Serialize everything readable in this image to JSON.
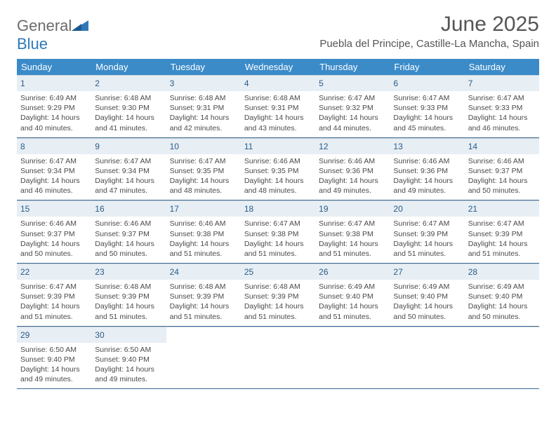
{
  "logo": {
    "word1": "General",
    "word2": "Blue"
  },
  "title": "June 2025",
  "location": "Puebla del Principe, Castille-La Mancha, Spain",
  "colors": {
    "header_bg": "#3b8bc9",
    "header_text": "#ffffff",
    "daynum_bg": "#e7eef4",
    "daynum_text": "#2a5d8a",
    "week_border": "#3b6a94",
    "body_text": "#4a4a4a",
    "logo_gray": "#6b6b6b",
    "logo_blue": "#2f78b8"
  },
  "day_names": [
    "Sunday",
    "Monday",
    "Tuesday",
    "Wednesday",
    "Thursday",
    "Friday",
    "Saturday"
  ],
  "weeks": [
    [
      {
        "n": "1",
        "sr": "Sunrise: 6:49 AM",
        "ss": "Sunset: 9:29 PM",
        "dl1": "Daylight: 14 hours",
        "dl2": "and 40 minutes."
      },
      {
        "n": "2",
        "sr": "Sunrise: 6:48 AM",
        "ss": "Sunset: 9:30 PM",
        "dl1": "Daylight: 14 hours",
        "dl2": "and 41 minutes."
      },
      {
        "n": "3",
        "sr": "Sunrise: 6:48 AM",
        "ss": "Sunset: 9:31 PM",
        "dl1": "Daylight: 14 hours",
        "dl2": "and 42 minutes."
      },
      {
        "n": "4",
        "sr": "Sunrise: 6:48 AM",
        "ss": "Sunset: 9:31 PM",
        "dl1": "Daylight: 14 hours",
        "dl2": "and 43 minutes."
      },
      {
        "n": "5",
        "sr": "Sunrise: 6:47 AM",
        "ss": "Sunset: 9:32 PM",
        "dl1": "Daylight: 14 hours",
        "dl2": "and 44 minutes."
      },
      {
        "n": "6",
        "sr": "Sunrise: 6:47 AM",
        "ss": "Sunset: 9:33 PM",
        "dl1": "Daylight: 14 hours",
        "dl2": "and 45 minutes."
      },
      {
        "n": "7",
        "sr": "Sunrise: 6:47 AM",
        "ss": "Sunset: 9:33 PM",
        "dl1": "Daylight: 14 hours",
        "dl2": "and 46 minutes."
      }
    ],
    [
      {
        "n": "8",
        "sr": "Sunrise: 6:47 AM",
        "ss": "Sunset: 9:34 PM",
        "dl1": "Daylight: 14 hours",
        "dl2": "and 46 minutes."
      },
      {
        "n": "9",
        "sr": "Sunrise: 6:47 AM",
        "ss": "Sunset: 9:34 PM",
        "dl1": "Daylight: 14 hours",
        "dl2": "and 47 minutes."
      },
      {
        "n": "10",
        "sr": "Sunrise: 6:47 AM",
        "ss": "Sunset: 9:35 PM",
        "dl1": "Daylight: 14 hours",
        "dl2": "and 48 minutes."
      },
      {
        "n": "11",
        "sr": "Sunrise: 6:46 AM",
        "ss": "Sunset: 9:35 PM",
        "dl1": "Daylight: 14 hours",
        "dl2": "and 48 minutes."
      },
      {
        "n": "12",
        "sr": "Sunrise: 6:46 AM",
        "ss": "Sunset: 9:36 PM",
        "dl1": "Daylight: 14 hours",
        "dl2": "and 49 minutes."
      },
      {
        "n": "13",
        "sr": "Sunrise: 6:46 AM",
        "ss": "Sunset: 9:36 PM",
        "dl1": "Daylight: 14 hours",
        "dl2": "and 49 minutes."
      },
      {
        "n": "14",
        "sr": "Sunrise: 6:46 AM",
        "ss": "Sunset: 9:37 PM",
        "dl1": "Daylight: 14 hours",
        "dl2": "and 50 minutes."
      }
    ],
    [
      {
        "n": "15",
        "sr": "Sunrise: 6:46 AM",
        "ss": "Sunset: 9:37 PM",
        "dl1": "Daylight: 14 hours",
        "dl2": "and 50 minutes."
      },
      {
        "n": "16",
        "sr": "Sunrise: 6:46 AM",
        "ss": "Sunset: 9:37 PM",
        "dl1": "Daylight: 14 hours",
        "dl2": "and 50 minutes."
      },
      {
        "n": "17",
        "sr": "Sunrise: 6:46 AM",
        "ss": "Sunset: 9:38 PM",
        "dl1": "Daylight: 14 hours",
        "dl2": "and 51 minutes."
      },
      {
        "n": "18",
        "sr": "Sunrise: 6:47 AM",
        "ss": "Sunset: 9:38 PM",
        "dl1": "Daylight: 14 hours",
        "dl2": "and 51 minutes."
      },
      {
        "n": "19",
        "sr": "Sunrise: 6:47 AM",
        "ss": "Sunset: 9:38 PM",
        "dl1": "Daylight: 14 hours",
        "dl2": "and 51 minutes."
      },
      {
        "n": "20",
        "sr": "Sunrise: 6:47 AM",
        "ss": "Sunset: 9:39 PM",
        "dl1": "Daylight: 14 hours",
        "dl2": "and 51 minutes."
      },
      {
        "n": "21",
        "sr": "Sunrise: 6:47 AM",
        "ss": "Sunset: 9:39 PM",
        "dl1": "Daylight: 14 hours",
        "dl2": "and 51 minutes."
      }
    ],
    [
      {
        "n": "22",
        "sr": "Sunrise: 6:47 AM",
        "ss": "Sunset: 9:39 PM",
        "dl1": "Daylight: 14 hours",
        "dl2": "and 51 minutes."
      },
      {
        "n": "23",
        "sr": "Sunrise: 6:48 AM",
        "ss": "Sunset: 9:39 PM",
        "dl1": "Daylight: 14 hours",
        "dl2": "and 51 minutes."
      },
      {
        "n": "24",
        "sr": "Sunrise: 6:48 AM",
        "ss": "Sunset: 9:39 PM",
        "dl1": "Daylight: 14 hours",
        "dl2": "and 51 minutes."
      },
      {
        "n": "25",
        "sr": "Sunrise: 6:48 AM",
        "ss": "Sunset: 9:39 PM",
        "dl1": "Daylight: 14 hours",
        "dl2": "and 51 minutes."
      },
      {
        "n": "26",
        "sr": "Sunrise: 6:49 AM",
        "ss": "Sunset: 9:40 PM",
        "dl1": "Daylight: 14 hours",
        "dl2": "and 51 minutes."
      },
      {
        "n": "27",
        "sr": "Sunrise: 6:49 AM",
        "ss": "Sunset: 9:40 PM",
        "dl1": "Daylight: 14 hours",
        "dl2": "and 50 minutes."
      },
      {
        "n": "28",
        "sr": "Sunrise: 6:49 AM",
        "ss": "Sunset: 9:40 PM",
        "dl1": "Daylight: 14 hours",
        "dl2": "and 50 minutes."
      }
    ],
    [
      {
        "n": "29",
        "sr": "Sunrise: 6:50 AM",
        "ss": "Sunset: 9:40 PM",
        "dl1": "Daylight: 14 hours",
        "dl2": "and 49 minutes."
      },
      {
        "n": "30",
        "sr": "Sunrise: 6:50 AM",
        "ss": "Sunset: 9:40 PM",
        "dl1": "Daylight: 14 hours",
        "dl2": "and 49 minutes."
      },
      null,
      null,
      null,
      null,
      null
    ]
  ]
}
